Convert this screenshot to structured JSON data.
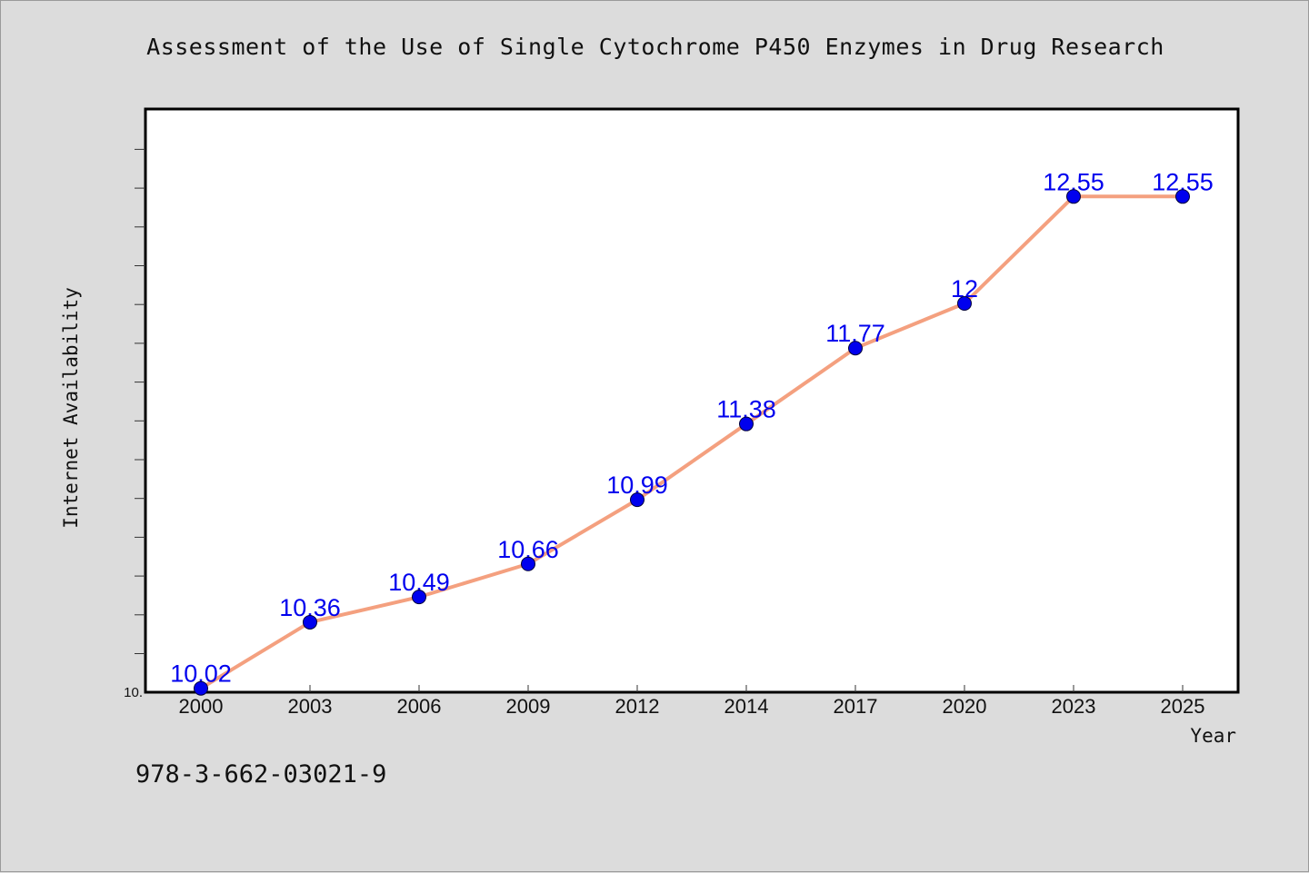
{
  "chart_data": {
    "type": "line",
    "title": "Assessment of the Use of Single Cytochrome P450 Enzymes in Drug Research",
    "xlabel": "Year",
    "ylabel": "Internet Availability",
    "categories": [
      "2000",
      "2003",
      "2006",
      "2009",
      "2012",
      "2014",
      "2017",
      "2020",
      "2023",
      "2025"
    ],
    "series": [
      {
        "values": [
          10.02,
          10.36,
          10.49,
          10.66,
          10.99,
          11.38,
          11.77,
          12,
          12.55,
          12.55
        ],
        "labels": [
          "10.02",
          "10.36",
          "10.49",
          "10.66",
          "10.99",
          "11.38",
          "11.77",
          "12",
          "12.55",
          "12.55"
        ],
        "line_color": "#f4a07f",
        "marker_color": "#0000ee",
        "label_color": "#0000ee"
      }
    ],
    "ylim": [
      10,
      13
    ],
    "y_tick_label": "10.",
    "grid": false,
    "legend": "none"
  },
  "footer": {
    "isbn": "978-3-662-03021-9"
  }
}
